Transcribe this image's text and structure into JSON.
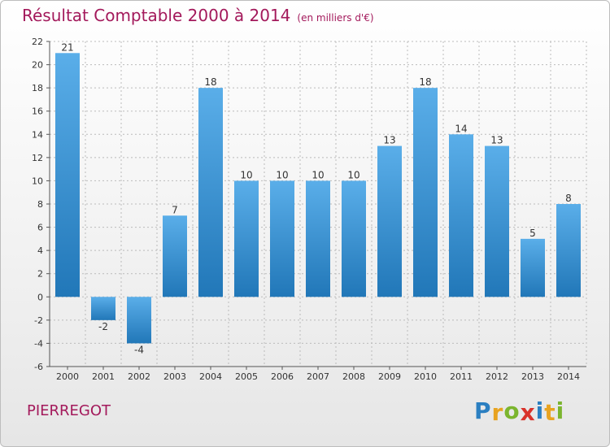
{
  "title": "Résultat Comptable 2000 à 2014",
  "unit_note": "(en milliers d'€)",
  "commune": "PIERREGOT",
  "logo": {
    "text": "Proxiti",
    "letter_colors": [
      "#2b7fc1",
      "#e8a320",
      "#7bb52e",
      "#d9322a",
      "#2b7fc1",
      "#e8a320",
      "#7bb52e"
    ]
  },
  "colors": {
    "bar_top": "#5aaee9",
    "bar_bottom": "#2177b8",
    "axis": "#555555",
    "grid": "#bbbbbb",
    "title": "#a3195b"
  },
  "chart_data": {
    "type": "bar",
    "categories": [
      "2000",
      "2001",
      "2002",
      "2003",
      "2004",
      "2005",
      "2006",
      "2007",
      "2008",
      "2009",
      "2010",
      "2011",
      "2012",
      "2013",
      "2014"
    ],
    "values": [
      21,
      -2,
      -4,
      7,
      18,
      10,
      10,
      10,
      10,
      13,
      18,
      14,
      13,
      5,
      8
    ],
    "ylim": [
      -6,
      22
    ],
    "yticks": [
      -6,
      -4,
      -2,
      0,
      2,
      4,
      6,
      8,
      10,
      12,
      14,
      16,
      18,
      20,
      22
    ],
    "grid": true,
    "title": "Résultat Comptable 2000 à 2014",
    "xlabel": "",
    "ylabel": ""
  }
}
